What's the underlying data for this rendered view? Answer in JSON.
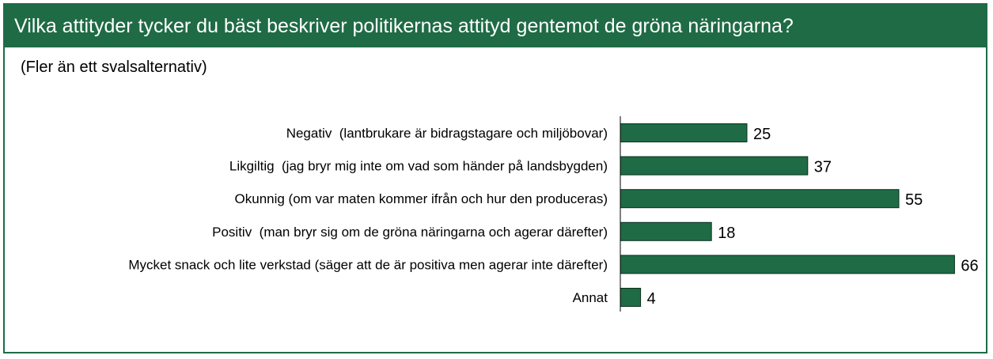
{
  "header": {
    "title": "Vilka attityder tycker du bäst beskriver politikernas attityd gentemot de gröna näringarna?"
  },
  "subtitle": "(Fler än ett svalsalternativ)",
  "colors": {
    "bar": "#1f6b45",
    "header_bg": "#1f6b45",
    "axis": "#000000"
  },
  "chart_data": {
    "type": "bar",
    "orientation": "horizontal",
    "categories": [
      "Negativ  (lantbrukare är bidragstagare och miljöbovar)",
      "Likgiltig  (jag bryr mig inte om vad som händer på landsbygden)",
      "Okunnig (om var maten kommer ifrån och hur den produceras)",
      "Positiv  (man bryr sig om de gröna näringarna och agerar därefter)",
      "Mycket snack och lite verkstad (säger att de är positiva men agerar inte därefter)",
      "Annat"
    ],
    "values": [
      25,
      37,
      55,
      18,
      66,
      4
    ],
    "data_labels": true,
    "grid": false,
    "legend": "none"
  }
}
